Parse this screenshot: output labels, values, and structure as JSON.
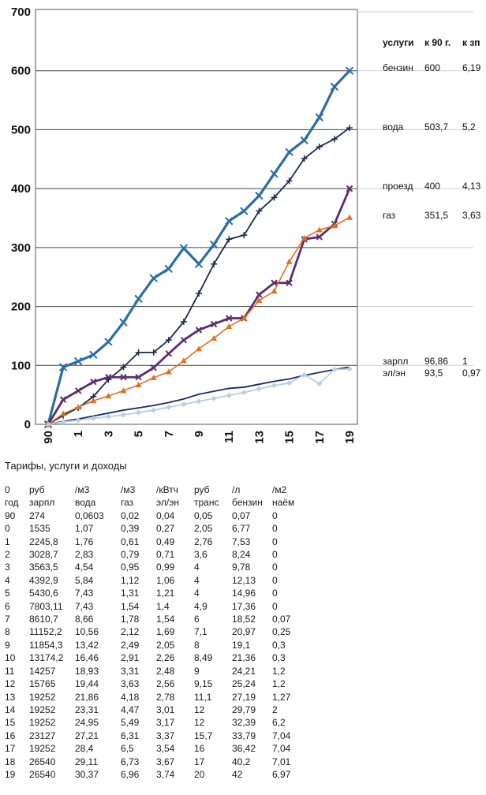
{
  "chart_data": {
    "type": "line",
    "ylim": [
      0,
      700
    ],
    "yticks": [
      "0",
      "100",
      "200",
      "300",
      "400",
      "500",
      "600",
      "700"
    ],
    "x": [
      0,
      1,
      2,
      3,
      4,
      5,
      6,
      7,
      8,
      9,
      10,
      11,
      12,
      13,
      14,
      15,
      16,
      17,
      18,
      19,
      20
    ],
    "xtick_labels": [
      "90",
      "1",
      "3",
      "5",
      "7",
      "9",
      "11",
      "13",
      "15",
      "17",
      "19"
    ],
    "grid": true,
    "series": [
      {
        "color": "#2e6da4",
        "marker": "x",
        "values": [
          0,
          97,
          107,
          118,
          140,
          173,
          213,
          248,
          264,
          299,
          272,
          305,
          345,
          362,
          388,
          425,
          462,
          482,
          521,
          573,
          600
        ]
      },
      {
        "color": "#1b2a4a",
        "marker": "plus",
        "values": [
          0,
          15,
          28,
          47,
          76,
          97,
          122,
          122,
          143,
          174,
          222,
          272,
          314,
          321,
          362,
          385,
          413,
          451,
          471,
          484,
          503
        ]
      },
      {
        "color": "#5b2d6e",
        "marker": "x",
        "values": [
          0,
          42,
          57,
          72,
          80,
          80,
          80,
          96,
          120,
          143,
          160,
          170,
          180,
          180,
          220,
          240,
          240,
          314,
          318,
          340,
          400
        ]
      },
      {
        "color": "#e07020",
        "marker": "triangle",
        "values": [
          0,
          18,
          29,
          40,
          48,
          57,
          67,
          79,
          89,
          108,
          128,
          146,
          166,
          180,
          210,
          226,
          276,
          316,
          330,
          337,
          351
        ]
      },
      {
        "color": "#1a2a6a",
        "marker": "none",
        "values": [
          0,
          5,
          9,
          14,
          19,
          24,
          28,
          32,
          37,
          43,
          51,
          56,
          61,
          63,
          68,
          73,
          77,
          83,
          88,
          93,
          97
        ]
      },
      {
        "color": "#b8cfe0",
        "marker": "diamond",
        "values": [
          0,
          4,
          7,
          10,
          13,
          16,
          20,
          24,
          29,
          34,
          39,
          44,
          49,
          54,
          60,
          66,
          70,
          84,
          69,
          93,
          94
        ]
      }
    ],
    "legend": {
      "headers": [
        "услуги",
        "к 90 г.",
        "к зп"
      ],
      "rows": [
        {
          "name": "бензин",
          "v90": "600",
          "vzp": "6,19"
        },
        {
          "name": "вода",
          "v90": "503,7",
          "vzp": "5,2"
        },
        {
          "name": "проезд",
          "v90": "400",
          "vzp": "4,13"
        },
        {
          "name": "газ",
          "v90": "351,5",
          "vzp": "3,63"
        },
        {
          "name": "зарпл",
          "v90": "96,86",
          "vzp": "1"
        },
        {
          "name": "эл/эн",
          "v90": "93,5",
          "vzp": "0,97"
        }
      ]
    }
  },
  "table": {
    "title": "Тарифы, услуги и доходы",
    "unit_row": [
      "0",
      "руб",
      "/м3",
      "/м3",
      "/кВтч",
      "руб",
      "/л",
      "/м2"
    ],
    "header_row": [
      "год",
      "зарпл",
      "вода",
      "газ",
      "эл/эн",
      "транс",
      "бензин",
      "наём"
    ],
    "rows": [
      [
        "90",
        "274",
        "0,0603",
        "0,02",
        "0,04",
        "0,05",
        "0,07",
        "0"
      ],
      [
        "0",
        "1535",
        "1,07",
        "0,39",
        "0,27",
        "2,05",
        "6,77",
        "0"
      ],
      [
        "1",
        "2245,8",
        "1,76",
        "0,61",
        "0,49",
        "2,76",
        "7,53",
        "0"
      ],
      [
        "2",
        "3028,7",
        "2,83",
        "0,79",
        "0,71",
        "3,6",
        "8,24",
        "0"
      ],
      [
        "3",
        "3563,5",
        "4,54",
        "0,95",
        "0,99",
        "4",
        "9,78",
        "0"
      ],
      [
        "4",
        "4392,9",
        "5,84",
        "1,12",
        "1,06",
        "4",
        "12,13",
        "0"
      ],
      [
        "5",
        "5430,6",
        "7,43",
        "1,31",
        "1,21",
        "4",
        "14,96",
        "0"
      ],
      [
        "6",
        "7803,11",
        "7,43",
        "1,54",
        "1,4",
        "4,9",
        "17,36",
        "0"
      ],
      [
        "7",
        "8610,7",
        "8,66",
        "1,78",
        "1,54",
        "6",
        "18,52",
        "0,07"
      ],
      [
        "8",
        "11152,2",
        "10,56",
        "2,12",
        "1,69",
        "7,1",
        "20,97",
        "0,25"
      ],
      [
        "9",
        "11854,3",
        "13,42",
        "2,49",
        "2,05",
        "8",
        "19,1",
        "0,3"
      ],
      [
        "10",
        "13174,2",
        "16,46",
        "2,91",
        "2,26",
        "8,49",
        "21,36",
        "0,3"
      ],
      [
        "11",
        "14257",
        "18,93",
        "3,31",
        "2,48",
        "9",
        "24,21",
        "1,2"
      ],
      [
        "12",
        "15765",
        "19,44",
        "3,63",
        "2,56",
        "9,15",
        "25,24",
        "1,2"
      ],
      [
        "13",
        "19252",
        "21,86",
        "4,18",
        "2,78",
        "11,1",
        "27,19",
        "1,27"
      ],
      [
        "14",
        "19252",
        "23,31",
        "4,47",
        "3,01",
        "12",
        "29,79",
        "2"
      ],
      [
        "15",
        "19252",
        "24,95",
        "5,49",
        "3,17",
        "12",
        "32,39",
        "6,2"
      ],
      [
        "16",
        "23127",
        "27,21",
        "6,31",
        "3,37",
        "15,7",
        "33,79",
        "7,04"
      ],
      [
        "17",
        "19252",
        "28,4",
        "6,5",
        "3,54",
        "16",
        "36,42",
        "7,04"
      ],
      [
        "18",
        "26540",
        "29,11",
        "6,73",
        "3,67",
        "17",
        "40,2",
        "7,01"
      ],
      [
        "19",
        "26540",
        "30,37",
        "6,96",
        "3,74",
        "20",
        "42",
        "6,97"
      ]
    ]
  }
}
